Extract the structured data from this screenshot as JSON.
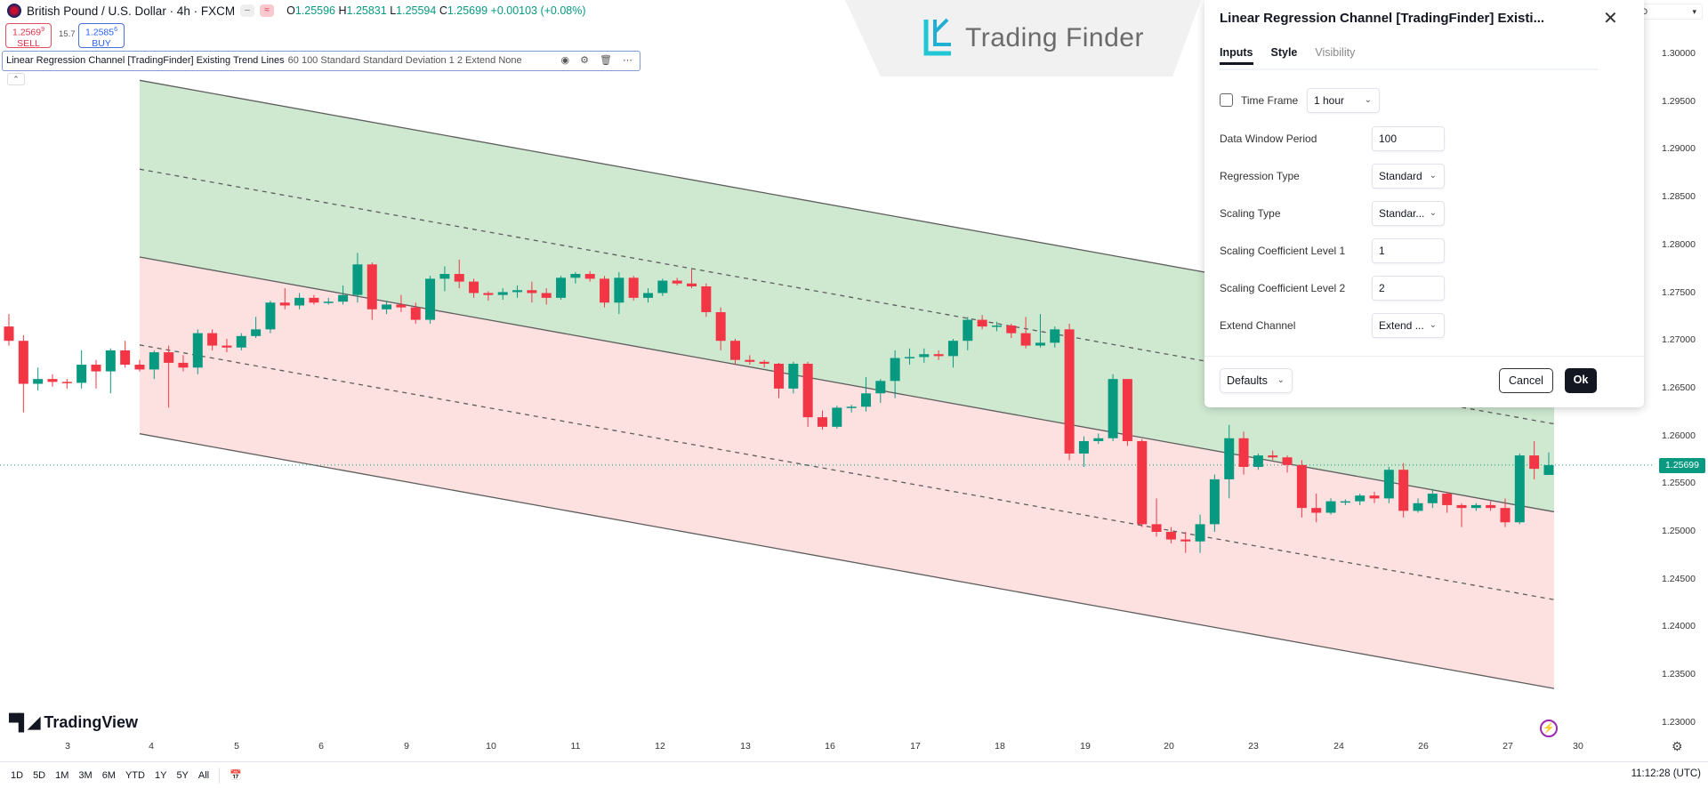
{
  "header": {
    "symbol": "British Pound / U.S. Dollar · 4h · FXCM",
    "ohlc": {
      "o_label": "O",
      "o": "1.25596",
      "h_label": "H",
      "h": "1.25831",
      "l_label": "L",
      "l": "1.25594",
      "c_label": "C",
      "c": "1.25699",
      "change": "+0.00103 (+0.08%)"
    }
  },
  "trade": {
    "sell_price": "1.2569",
    "sell_pip": "9",
    "sell_label": "SELL",
    "spread": "15.7",
    "buy_price": "1.2585",
    "buy_pip": "6",
    "buy_label": "BUY"
  },
  "indicator_legend": {
    "name": "Linear Regression Channel [TradingFinder] Existing Trend Lines",
    "params": "60 100 Standard Standard Deviation 1 2 Extend None"
  },
  "watermark": "Trading Finder",
  "branding": "TradingView",
  "dialog": {
    "title": "Linear Regression Channel [TradingFinder] Existi...",
    "tabs": [
      "Inputs",
      "Style",
      "Visibility"
    ],
    "active_tab": "Inputs",
    "time_frame": {
      "label": "Time Frame",
      "checked": false,
      "value": "1 hour"
    },
    "fields": [
      {
        "label": "Data Window Period",
        "value": "100",
        "type": "input"
      },
      {
        "label": "Regression Type",
        "value": "Standard",
        "type": "select"
      },
      {
        "label": "Scaling Type",
        "value": "Standar...",
        "type": "select"
      },
      {
        "label": "Scaling Coefficient Level 1",
        "value": "1",
        "type": "input"
      },
      {
        "label": "Scaling Coefficient Level 2",
        "value": "2",
        "type": "input"
      },
      {
        "label": "Extend Channel",
        "value": "Extend ...",
        "type": "select"
      }
    ],
    "defaults_label": "Defaults",
    "cancel_label": "Cancel",
    "ok_label": "Ok"
  },
  "price_axis": {
    "currency": "USD",
    "labels": [
      "1.30000",
      "1.29500",
      "1.29000",
      "1.28500",
      "1.28000",
      "1.27500",
      "1.27000",
      "1.26500",
      "1.26000",
      "1.25500",
      "1.25000",
      "1.24500",
      "1.24000",
      "1.23500",
      "1.23000"
    ],
    "current_price": "1.25699"
  },
  "time_axis": {
    "labels": [
      "3",
      "4",
      "5",
      "6",
      "9",
      "10",
      "11",
      "12",
      "13",
      "16",
      "17",
      "18",
      "19",
      "20",
      "23",
      "24",
      "26",
      "27",
      "30"
    ]
  },
  "bottom_bar": {
    "ranges": [
      "1D",
      "5D",
      "1M",
      "3M",
      "6M",
      "YTD",
      "1Y",
      "5Y",
      "All"
    ],
    "clock": "11:12:28 (UTC)"
  },
  "colors": {
    "up": "#089981",
    "down": "#f23645",
    "channel_upper_fill": "#cfe9d1",
    "channel_lower_fill": "#fde1e1",
    "channel_line": "#5d5d5d",
    "accent": "#2962ff"
  },
  "chart_data": {
    "type": "candlestick",
    "ylim": [
      1.2275,
      1.3057
    ],
    "candles": [
      [
        1.2715,
        1.2728,
        1.2695,
        1.27
      ],
      [
        1.27,
        1.2706,
        1.2625,
        1.2655
      ],
      [
        1.2655,
        1.2672,
        1.2648,
        1.266
      ],
      [
        1.266,
        1.2665,
        1.2652,
        1.2657
      ],
      [
        1.2657,
        1.266,
        1.265,
        1.2656
      ],
      [
        1.2656,
        1.269,
        1.265,
        1.2675
      ],
      [
        1.2675,
        1.268,
        1.265,
        1.2668
      ],
      [
        1.2668,
        1.2692,
        1.2645,
        1.269
      ],
      [
        1.269,
        1.27,
        1.2672,
        1.2675
      ],
      [
        1.2675,
        1.268,
        1.2668,
        1.267
      ],
      [
        1.267,
        1.269,
        1.266,
        1.2688
      ],
      [
        1.2688,
        1.2695,
        1.263,
        1.2677
      ],
      [
        1.2677,
        1.2685,
        1.2668,
        1.2672
      ],
      [
        1.2672,
        1.2712,
        1.2665,
        1.2708
      ],
      [
        1.2708,
        1.2712,
        1.269,
        1.2695
      ],
      [
        1.2695,
        1.2702,
        1.2688,
        1.2693
      ],
      [
        1.2693,
        1.2708,
        1.269,
        1.2705
      ],
      [
        1.2705,
        1.2725,
        1.2703,
        1.2712
      ],
      [
        1.2712,
        1.2742,
        1.2708,
        1.274
      ],
      [
        1.274,
        1.2755,
        1.2733,
        1.2737
      ],
      [
        1.2737,
        1.275,
        1.2733,
        1.2745
      ],
      [
        1.2745,
        1.2748,
        1.2738,
        1.274
      ],
      [
        1.274,
        1.2745,
        1.2738,
        1.2741
      ],
      [
        1.2741,
        1.2758,
        1.2738,
        1.2748
      ],
      [
        1.2748,
        1.2792,
        1.274,
        1.278
      ],
      [
        1.278,
        1.2782,
        1.2722,
        1.2733
      ],
      [
        1.2733,
        1.2742,
        1.2728,
        1.2738
      ],
      [
        1.2738,
        1.2748,
        1.273,
        1.2735
      ],
      [
        1.2735,
        1.274,
        1.2718,
        1.2722
      ],
      [
        1.2722,
        1.2768,
        1.2718,
        1.2765
      ],
      [
        1.2765,
        1.2778,
        1.2752,
        1.277
      ],
      [
        1.277,
        1.2785,
        1.2755,
        1.2762
      ],
      [
        1.2762,
        1.2765,
        1.2745,
        1.275
      ],
      [
        1.275,
        1.2752,
        1.2742,
        1.2748
      ],
      [
        1.2748,
        1.2755,
        1.2743,
        1.2751
      ],
      [
        1.2751,
        1.2758,
        1.2745,
        1.2753
      ],
      [
        1.2753,
        1.2762,
        1.274,
        1.275
      ],
      [
        1.275,
        1.2755,
        1.2738,
        1.2745
      ],
      [
        1.2745,
        1.2768,
        1.2743,
        1.2766
      ],
      [
        1.2766,
        1.2772,
        1.276,
        1.277
      ],
      [
        1.277,
        1.2773,
        1.2762,
        1.2765
      ],
      [
        1.2765,
        1.2768,
        1.2735,
        1.274
      ],
      [
        1.274,
        1.2772,
        1.2728,
        1.2766
      ],
      [
        1.2766,
        1.2768,
        1.2742,
        1.2745
      ],
      [
        1.2745,
        1.2755,
        1.274,
        1.275
      ],
      [
        1.275,
        1.2765,
        1.2747,
        1.2763
      ],
      [
        1.2763,
        1.2766,
        1.2758,
        1.276
      ],
      [
        1.276,
        1.2775,
        1.2755,
        1.2757
      ],
      [
        1.2757,
        1.276,
        1.2725,
        1.273
      ],
      [
        1.273,
        1.2735,
        1.269,
        1.27
      ],
      [
        1.27,
        1.2702,
        1.2675,
        1.268
      ],
      [
        1.268,
        1.2685,
        1.2675,
        1.2678
      ],
      [
        1.2678,
        1.268,
        1.2672,
        1.2676
      ],
      [
        1.2676,
        1.2677,
        1.264,
        1.265
      ],
      [
        1.265,
        1.2678,
        1.2645,
        1.2676
      ],
      [
        1.2676,
        1.2678,
        1.261,
        1.262
      ],
      [
        1.262,
        1.2627,
        1.2607,
        1.261
      ],
      [
        1.261,
        1.2632,
        1.2608,
        1.263
      ],
      [
        1.263,
        1.2633,
        1.2625,
        1.2631
      ],
      [
        1.2631,
        1.2662,
        1.2626,
        1.2645
      ],
      [
        1.2645,
        1.266,
        1.2635,
        1.2658
      ],
      [
        1.2658,
        1.269,
        1.264,
        1.2682
      ],
      [
        1.2682,
        1.2692,
        1.2675,
        1.2683
      ],
      [
        1.2683,
        1.2692,
        1.2677,
        1.2686
      ],
      [
        1.2686,
        1.269,
        1.268,
        1.2684
      ],
      [
        1.2684,
        1.2702,
        1.2672,
        1.27
      ],
      [
        1.27,
        1.2725,
        1.269,
        1.2722
      ],
      [
        1.2722,
        1.2727,
        1.2712,
        1.2715
      ],
      [
        1.2715,
        1.272,
        1.271,
        1.2716
      ],
      [
        1.2716,
        1.2718,
        1.2703,
        1.2708
      ],
      [
        1.2708,
        1.2725,
        1.2692,
        1.2695
      ],
      [
        1.2695,
        1.2728,
        1.2693,
        1.2698
      ],
      [
        1.2698,
        1.2715,
        1.2693,
        1.2712
      ],
      [
        1.2712,
        1.2718,
        1.2575,
        1.2582
      ],
      [
        1.2582,
        1.26,
        1.2568,
        1.2595
      ],
      [
        1.2595,
        1.2603,
        1.2592,
        1.2598
      ],
      [
        1.2598,
        1.2665,
        1.2595,
        1.266
      ],
      [
        1.266,
        1.266,
        1.259,
        1.2595
      ],
      [
        1.2595,
        1.2597,
        1.2505,
        1.2508
      ],
      [
        1.2508,
        1.2535,
        1.2495,
        1.25
      ],
      [
        1.25,
        1.2505,
        1.2488,
        1.2492
      ],
      [
        1.2492,
        1.25,
        1.2478,
        1.249
      ],
      [
        1.249,
        1.2518,
        1.2478,
        1.2508
      ],
      [
        1.2508,
        1.256,
        1.25,
        1.2555
      ],
      [
        1.2555,
        1.2612,
        1.2535,
        1.2598
      ],
      [
        1.2598,
        1.2605,
        1.256,
        1.2568
      ],
      [
        1.2568,
        1.2582,
        1.2565,
        1.258
      ],
      [
        1.258,
        1.2585,
        1.2575,
        1.2578
      ],
      [
        1.2578,
        1.258,
        1.2562,
        1.257
      ],
      [
        1.257,
        1.2575,
        1.2515,
        1.2525
      ],
      [
        1.2525,
        1.254,
        1.251,
        1.252
      ],
      [
        1.252,
        1.2535,
        1.2518,
        1.2532
      ],
      [
        1.2532,
        1.2534,
        1.2528,
        1.2532
      ],
      [
        1.2532,
        1.254,
        1.2528,
        1.2538
      ],
      [
        1.2538,
        1.2542,
        1.253,
        1.2535
      ],
      [
        1.2535,
        1.2568,
        1.253,
        1.2565
      ],
      [
        1.2565,
        1.2572,
        1.2515,
        1.2522
      ],
      [
        1.2522,
        1.2535,
        1.252,
        1.253
      ],
      [
        1.253,
        1.2545,
        1.2525,
        1.254
      ],
      [
        1.254,
        1.2542,
        1.252,
        1.2528
      ],
      [
        1.2528,
        1.253,
        1.2505,
        1.2525
      ],
      [
        1.2525,
        1.253,
        1.2522,
        1.2528
      ],
      [
        1.2528,
        1.2532,
        1.2522,
        1.2525
      ],
      [
        1.2525,
        1.2535,
        1.2505,
        1.251
      ],
      [
        1.251,
        1.2582,
        1.2508,
        1.258
      ],
      [
        1.258,
        1.2595,
        1.2555,
        1.2566
      ],
      [
        1.25596,
        1.25831,
        1.25594,
        1.25699
      ]
    ],
    "channel": {
      "start_candle": 9,
      "end_candle": 106,
      "mid_start": 1.27877,
      "mid_end": 1.2521,
      "level1_offset": 0.0092,
      "level2_offset": 0.0185
    },
    "current_price": 1.25699
  }
}
